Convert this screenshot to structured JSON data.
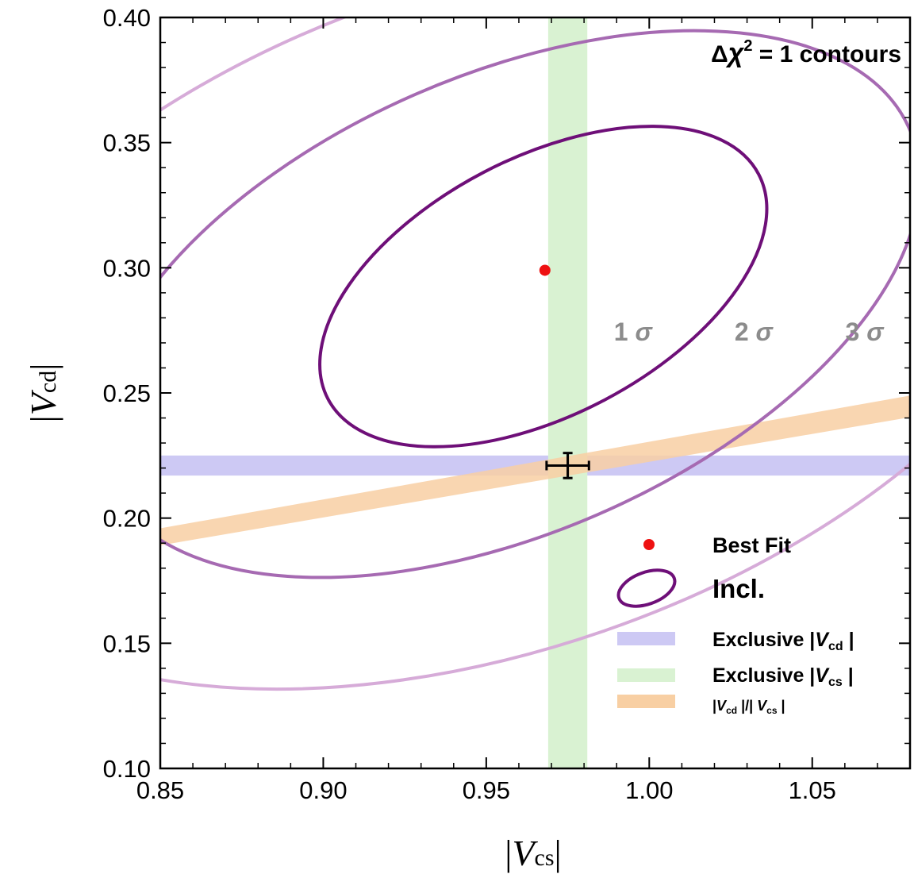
{
  "chart_data": {
    "type": "contour",
    "title": "Δχ² = 1 contours",
    "title_parts": {
      "delta": "Δ",
      "chi": "χ",
      "sup": "2",
      "rest": " = 1 contours"
    },
    "xlabel": "|Vcs|",
    "xlabel_parts": {
      "bar_open": "|",
      "V": "V",
      "sub": "cs",
      "bar_close": "|"
    },
    "ylabel": "|Vcd|",
    "ylabel_parts": {
      "bar_open": "|",
      "V": "V",
      "sub": "cd",
      "bar_close": "|"
    },
    "xlim": [
      0.85,
      1.08
    ],
    "ylim": [
      0.1,
      0.4
    ],
    "xticks": [
      "0.85",
      "0.90",
      "0.95",
      "1.00",
      "1.05"
    ],
    "yticks": [
      "0.10",
      "0.15",
      "0.20",
      "0.25",
      "0.30",
      "0.35",
      "0.40"
    ],
    "best_fit": {
      "x": 0.968,
      "y": 0.299,
      "color": "#ee1111"
    },
    "contours": [
      {
        "name": "1 σ",
        "num": "1",
        "sym": "σ",
        "cx": 0.9675,
        "cy": 0.2925,
        "rx": 0.0745,
        "ry": 0.0515,
        "angle_deg": 27.5,
        "color": "#6e0f78",
        "label_x": 0.995,
        "label_y": 0.271
      },
      {
        "name": "2 σ",
        "num": "2",
        "sym": "σ",
        "cx": 0.9565,
        "cy": 0.2855,
        "rx": 0.1345,
        "ry": 0.0915,
        "angle_deg": 23.5,
        "color": "#a66ab2",
        "label_x": 1.032,
        "label_y": 0.271
      },
      {
        "name": "3 σ",
        "num": "3",
        "sym": "σ",
        "cx": 0.9525,
        "cy": 0.2805,
        "rx": 0.1875,
        "ry": 0.133,
        "angle_deg": 19,
        "color": "#d6abd8",
        "label_x": 1.066,
        "label_y": 0.271
      }
    ],
    "bands": [
      {
        "name": "Exclusive |Vcd|",
        "kind": "horizontal",
        "lo": 0.217,
        "hi": 0.225,
        "color": "#cdc9f4"
      },
      {
        "name": "Exclusive |Vcs|",
        "kind": "vertical",
        "lo": 0.969,
        "hi": 0.981,
        "color": "#d9f2d2"
      },
      {
        "name": "|Vcd|/|Vcs|",
        "kind": "ratio",
        "lo": 0.2225,
        "hi": 0.2305,
        "color": "#f8cfa3"
      }
    ],
    "measurement": {
      "x": 0.975,
      "y": 0.221,
      "xerr": 0.0065,
      "yerr": 0.005,
      "color": "#000000"
    },
    "legend": {
      "position": "bottom-right",
      "best_fit": "Best Fit",
      "incl": "Incl.",
      "excl_vcd": {
        "prefix": "Exclusive  |",
        "V": "V",
        "sub": "cd",
        "suffix": " |"
      },
      "excl_vcs": {
        "prefix": "Exclusive  |",
        "V": "V",
        "sub": "cs",
        "suffix": " |"
      },
      "ratio": {
        "p1": "|",
        "V1": "V",
        "sub1": "cd",
        "p2": " |/| ",
        "V2": "V",
        "sub2": "cs",
        "p3": " |"
      }
    }
  }
}
